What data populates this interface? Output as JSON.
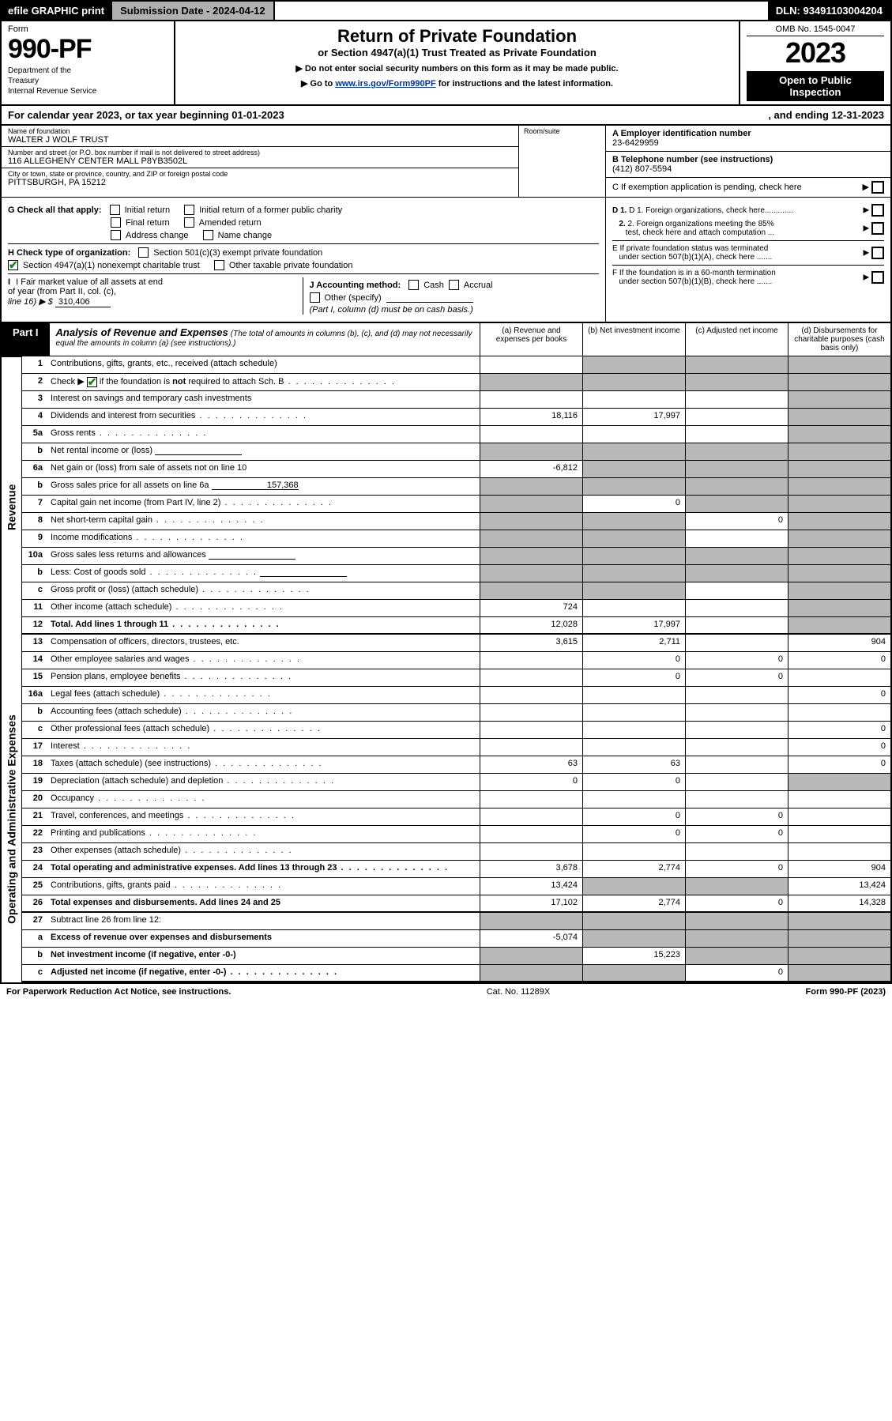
{
  "topbar": {
    "efile": "efile GRAPHIC print",
    "subdate_lbl": "Submission Date - ",
    "subdate_val": "2024-04-12",
    "dln_lbl": "DLN: ",
    "dln_val": "93491103004204"
  },
  "header": {
    "form_lbl": "Form",
    "form_no": "990-PF",
    "dept1": "Department of the",
    "dept2": "Treasury",
    "dept3": "Internal Revenue Service",
    "title": "Return of Private Foundation",
    "subtitle": "or Section 4947(a)(1) Trust Treated as Private Foundation",
    "note1": "▶ Do not enter social security numbers on this form as it may be made public.",
    "note2_pre": "▶ Go to ",
    "note2_link": "www.irs.gov/Form990PF",
    "note2_post": " for instructions and the latest information.",
    "omb": "OMB No. 1545-0047",
    "year": "2023",
    "open1": "Open to Public",
    "open2": "Inspection"
  },
  "period": {
    "left": "For calendar year 2023, or tax year beginning 01-01-2023",
    "right": ", and ending 12-31-2023"
  },
  "entity": {
    "name_lbl": "Name of foundation",
    "name_val": "WALTER J WOLF TRUST",
    "addr_lbl": "Number and street (or P.O. box number if mail is not delivered to street address)",
    "addr_val": "116 ALLEGHENY CENTER MALL P8YB3502L",
    "room_lbl": "Room/suite",
    "city_lbl": "City or town, state or province, country, and ZIP or foreign postal code",
    "city_val": "PITTSBURGH, PA  15212",
    "A_lbl": "A Employer identification number",
    "A_val": "23-6429959",
    "B_lbl": "B Telephone number (see instructions)",
    "B_val": "(412) 807-5594",
    "C_lbl": "C If exemption application is pending, check here"
  },
  "ghij": {
    "G_lbl": "G Check all that apply:",
    "G_opts": [
      "Initial return",
      "Initial return of a former public charity",
      "Final return",
      "Amended return",
      "Address change",
      "Name change"
    ],
    "H_lbl": "H Check type of organization:",
    "H_opt1": "Section 501(c)(3) exempt private foundation",
    "H_opt2": "Section 4947(a)(1) nonexempt charitable trust",
    "H_opt3": "Other taxable private foundation",
    "I_lbl1": "I Fair market value of all assets at end",
    "I_lbl2": "of year (from Part II, col. (c),",
    "I_lbl3": "line 16) ▶ $",
    "I_val": "310,406",
    "J_lbl": "J Accounting method:",
    "J_opts": [
      "Cash",
      "Accrual"
    ],
    "J_other": "Other (specify)",
    "J_note": "(Part I, column (d) must be on cash basis.)",
    "D1": "D 1. Foreign organizations, check here.............",
    "D2a": "2. Foreign organizations meeting the 85%",
    "D2b": "test, check here and attach computation ...",
    "E1": "E  If private foundation status was terminated",
    "E2": "under section 507(b)(1)(A), check here .......",
    "F1": "F  If the foundation is in a 60-month termination",
    "F2": "under section 507(b)(1)(B), check here ......."
  },
  "part1": {
    "tag": "Part I",
    "title": "Analysis of Revenue and Expenses",
    "title_note": "(The total of amounts in columns (b), (c), and (d) may not necessarily equal the amounts in column (a) (see instructions).)",
    "col_a": "(a)   Revenue and expenses per books",
    "col_b": "(b)   Net investment income",
    "col_c": "(c)   Adjusted net income",
    "col_d": "(d)   Disbursements for charitable purposes (cash basis only)"
  },
  "side": {
    "rev": "Revenue",
    "exp": "Operating and Administrative Expenses"
  },
  "rows": [
    {
      "n": "1",
      "t": "Contributions, gifts, grants, etc., received (attach schedule)",
      "a": "",
      "b": "shade",
      "c": "shade",
      "d": "shade"
    },
    {
      "n": "2",
      "t": "Check ▶ ☑ if the foundation is not required to attach Sch. B",
      "dots": true,
      "a": "shade",
      "b": "shade",
      "c": "shade",
      "d": "shade",
      "chk": true
    },
    {
      "n": "3",
      "t": "Interest on savings and temporary cash investments",
      "a": "",
      "b": "",
      "c": "",
      "d": "shade"
    },
    {
      "n": "4",
      "t": "Dividends and interest from securities",
      "dots": true,
      "a": "18,116",
      "b": "17,997",
      "c": "",
      "d": "shade"
    },
    {
      "n": "5a",
      "t": "Gross rents",
      "dots": true,
      "a": "",
      "b": "",
      "c": "",
      "d": "shade"
    },
    {
      "n": "b",
      "t": "Net rental income or (loss)",
      "inset": true,
      "a": "shade",
      "b": "shade",
      "c": "shade",
      "d": "shade"
    },
    {
      "n": "6a",
      "t": "Net gain or (loss) from sale of assets not on line 10",
      "a": "-6,812",
      "b": "shade",
      "c": "shade",
      "d": "shade"
    },
    {
      "n": "b",
      "t": "Gross sales price for all assets on line 6a",
      "insetval": "157,368",
      "a": "shade",
      "b": "shade",
      "c": "shade",
      "d": "shade"
    },
    {
      "n": "7",
      "t": "Capital gain net income (from Part IV, line 2)",
      "dots": true,
      "a": "shade",
      "b": "0",
      "c": "shade",
      "d": "shade"
    },
    {
      "n": "8",
      "t": "Net short-term capital gain",
      "dots": true,
      "a": "shade",
      "b": "shade",
      "c": "0",
      "d": "shade"
    },
    {
      "n": "9",
      "t": "Income modifications",
      "dots": true,
      "a": "shade",
      "b": "shade",
      "c": "",
      "d": "shade"
    },
    {
      "n": "10a",
      "t": "Gross sales less returns and allowances",
      "inset": true,
      "a": "shade",
      "b": "shade",
      "c": "shade",
      "d": "shade"
    },
    {
      "n": "b",
      "t": "Less: Cost of goods sold",
      "dots": true,
      "inset": true,
      "a": "shade",
      "b": "shade",
      "c": "shade",
      "d": "shade"
    },
    {
      "n": "c",
      "t": "Gross profit or (loss) (attach schedule)",
      "dots": true,
      "a": "shade",
      "b": "shade",
      "c": "",
      "d": "shade"
    },
    {
      "n": "11",
      "t": "Other income (attach schedule)",
      "dots": true,
      "a": "724",
      "b": "",
      "c": "",
      "d": "shade"
    },
    {
      "n": "12",
      "t": "Total. Add lines 1 through 11",
      "dots": true,
      "bold": true,
      "a": "12,028",
      "b": "17,997",
      "c": "",
      "d": "shade",
      "thick": true
    },
    {
      "n": "13",
      "t": "Compensation of officers, directors, trustees, etc.",
      "a": "3,615",
      "b": "2,711",
      "c": "",
      "d": "904"
    },
    {
      "n": "14",
      "t": "Other employee salaries and wages",
      "dots": true,
      "a": "",
      "b": "0",
      "c": "0",
      "d": "0"
    },
    {
      "n": "15",
      "t": "Pension plans, employee benefits",
      "dots": true,
      "a": "",
      "b": "0",
      "c": "0",
      "d": ""
    },
    {
      "n": "16a",
      "t": "Legal fees (attach schedule)",
      "dots": true,
      "a": "",
      "b": "",
      "c": "",
      "d": "0"
    },
    {
      "n": "b",
      "t": "Accounting fees (attach schedule)",
      "dots": true,
      "a": "",
      "b": "",
      "c": "",
      "d": ""
    },
    {
      "n": "c",
      "t": "Other professional fees (attach schedule)",
      "dots": true,
      "a": "",
      "b": "",
      "c": "",
      "d": "0"
    },
    {
      "n": "17",
      "t": "Interest",
      "dots": true,
      "a": "",
      "b": "",
      "c": "",
      "d": "0"
    },
    {
      "n": "18",
      "t": "Taxes (attach schedule) (see instructions)",
      "dots": true,
      "a": "63",
      "b": "63",
      "c": "",
      "d": "0"
    },
    {
      "n": "19",
      "t": "Depreciation (attach schedule) and depletion",
      "dots": true,
      "a": "0",
      "b": "0",
      "c": "",
      "d": "shade"
    },
    {
      "n": "20",
      "t": "Occupancy",
      "dots": true,
      "a": "",
      "b": "",
      "c": "",
      "d": ""
    },
    {
      "n": "21",
      "t": "Travel, conferences, and meetings",
      "dots": true,
      "a": "",
      "b": "0",
      "c": "0",
      "d": ""
    },
    {
      "n": "22",
      "t": "Printing and publications",
      "dots": true,
      "a": "",
      "b": "0",
      "c": "0",
      "d": ""
    },
    {
      "n": "23",
      "t": "Other expenses (attach schedule)",
      "dots": true,
      "a": "",
      "b": "",
      "c": "",
      "d": ""
    },
    {
      "n": "24",
      "t": "Total operating and administrative expenses. Add lines 13 through 23",
      "dots": true,
      "bold": true,
      "a": "3,678",
      "b": "2,774",
      "c": "0",
      "d": "904"
    },
    {
      "n": "25",
      "t": "Contributions, gifts, grants paid",
      "dots": true,
      "a": "13,424",
      "b": "shade",
      "c": "shade",
      "d": "13,424"
    },
    {
      "n": "26",
      "t": "Total expenses and disbursements. Add lines 24 and 25",
      "bold": true,
      "a": "17,102",
      "b": "2,774",
      "c": "0",
      "d": "14,328",
      "thick": true
    },
    {
      "n": "27",
      "t": "Subtract line 26 from line 12:",
      "a": "shade",
      "b": "shade",
      "c": "shade",
      "d": "shade"
    },
    {
      "n": "a",
      "t": "Excess of revenue over expenses and disbursements",
      "bold": true,
      "a": "-5,074",
      "b": "shade",
      "c": "shade",
      "d": "shade"
    },
    {
      "n": "b",
      "t": "Net investment income (if negative, enter -0-)",
      "bold": true,
      "a": "shade",
      "b": "15,223",
      "c": "shade",
      "d": "shade"
    },
    {
      "n": "c",
      "t": "Adjusted net income (if negative, enter -0-)",
      "dots": true,
      "bold": true,
      "a": "shade",
      "b": "shade",
      "c": "0",
      "d": "shade",
      "thick": true
    }
  ],
  "footer": {
    "left": "For Paperwork Reduction Act Notice, see instructions.",
    "mid": "Cat. No. 11289X",
    "right": "Form 990-PF (2023)"
  },
  "colors": {
    "shade": "#b8b8b8",
    "link": "#003399",
    "check": "#0a8a0a"
  }
}
